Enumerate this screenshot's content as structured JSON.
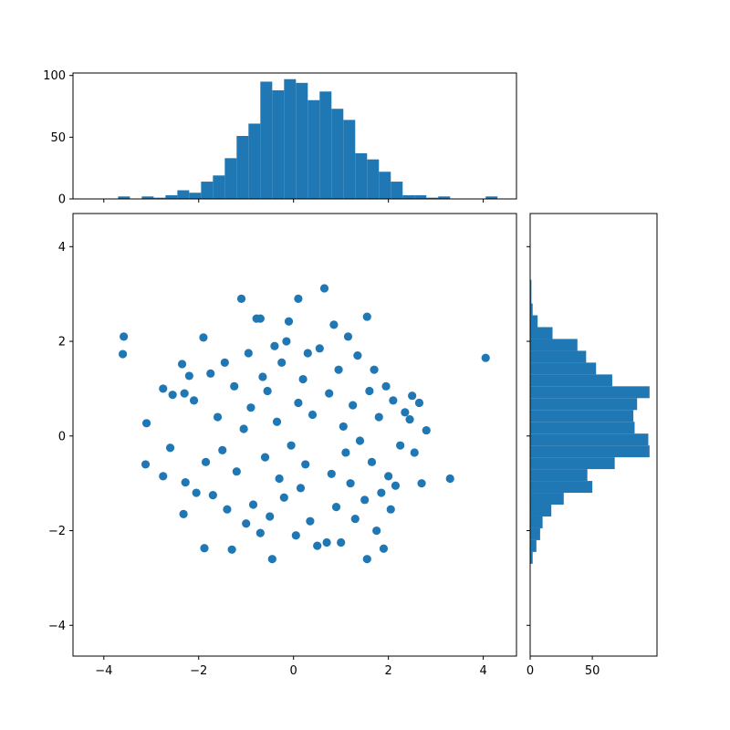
{
  "chart_data": {
    "type": "scatter",
    "color": "#1f77b4",
    "title": "",
    "scatter": {
      "xlabel": "",
      "ylabel": "",
      "xlim": [
        -4.65,
        4.7
      ],
      "ylim": [
        -4.65,
        4.7
      ],
      "xticks": [
        "−4",
        "−2",
        "0",
        "2",
        "4"
      ],
      "yticks": [
        "−4",
        "−2",
        "0",
        "2",
        "4"
      ],
      "xtick_values": [
        -4,
        -2,
        0,
        2,
        4
      ],
      "ytick_values": [
        -4,
        -2,
        0,
        2,
        4
      ],
      "points": [
        [
          -3.58,
          2.1
        ],
        [
          -3.6,
          1.73
        ],
        [
          -3.1,
          0.27
        ],
        [
          -3.12,
          -0.6
        ],
        [
          -2.75,
          1.0
        ],
        [
          -2.75,
          -0.85
        ],
        [
          -2.55,
          0.87
        ],
        [
          -2.6,
          -0.25
        ],
        [
          -2.35,
          1.52
        ],
        [
          -2.3,
          0.9
        ],
        [
          -2.28,
          -0.98
        ],
        [
          -2.32,
          -1.65
        ],
        [
          -2.2,
          1.27
        ],
        [
          -2.1,
          0.75
        ],
        [
          -2.05,
          -1.2
        ],
        [
          -1.9,
          2.08
        ],
        [
          -1.88,
          -2.37
        ],
        [
          -1.85,
          -0.55
        ],
        [
          -1.75,
          1.32
        ],
        [
          -1.7,
          -1.25
        ],
        [
          -1.6,
          0.4
        ],
        [
          -1.5,
          -0.3
        ],
        [
          -1.45,
          1.55
        ],
        [
          -1.4,
          -1.55
        ],
        [
          -1.3,
          -2.4
        ],
        [
          -1.25,
          1.05
        ],
        [
          -1.2,
          -0.75
        ],
        [
          -1.1,
          2.9
        ],
        [
          -1.05,
          0.15
        ],
        [
          -1.0,
          -1.85
        ],
        [
          -0.95,
          1.75
        ],
        [
          -0.9,
          0.6
        ],
        [
          -0.85,
          -1.45
        ],
        [
          -0.78,
          2.48
        ],
        [
          -0.7,
          -2.05
        ],
        [
          -0.7,
          2.48
        ],
        [
          -0.65,
          1.25
        ],
        [
          -0.6,
          -0.45
        ],
        [
          -0.55,
          0.95
        ],
        [
          -0.5,
          -1.7
        ],
        [
          -0.45,
          -2.6
        ],
        [
          -0.4,
          1.9
        ],
        [
          -0.35,
          0.3
        ],
        [
          -0.3,
          -0.9
        ],
        [
          -0.25,
          1.55
        ],
        [
          -0.2,
          -1.3
        ],
        [
          -0.15,
          2.0
        ],
        [
          -0.1,
          2.42
        ],
        [
          -0.05,
          -0.2
        ],
        [
          0.05,
          -2.1
        ],
        [
          0.1,
          2.9
        ],
        [
          0.1,
          0.7
        ],
        [
          0.15,
          -1.1
        ],
        [
          0.2,
          1.2
        ],
        [
          0.25,
          -0.6
        ],
        [
          0.3,
          1.75
        ],
        [
          0.35,
          -1.8
        ],
        [
          0.4,
          0.45
        ],
        [
          0.5,
          -2.32
        ],
        [
          0.55,
          1.85
        ],
        [
          0.65,
          3.12
        ],
        [
          0.7,
          -2.25
        ],
        [
          0.75,
          0.9
        ],
        [
          0.8,
          -0.8
        ],
        [
          0.85,
          2.35
        ],
        [
          0.9,
          -1.5
        ],
        [
          0.95,
          1.4
        ],
        [
          1.0,
          -2.25
        ],
        [
          1.05,
          0.2
        ],
        [
          1.1,
          -0.35
        ],
        [
          1.15,
          2.1
        ],
        [
          1.2,
          -1.0
        ],
        [
          1.25,
          0.65
        ],
        [
          1.3,
          -1.75
        ],
        [
          1.35,
          1.7
        ],
        [
          1.4,
          -0.1
        ],
        [
          1.5,
          -1.35
        ],
        [
          1.55,
          2.52
        ],
        [
          1.55,
          -2.6
        ],
        [
          1.6,
          0.95
        ],
        [
          1.65,
          -0.55
        ],
        [
          1.7,
          1.4
        ],
        [
          1.75,
          -2.0
        ],
        [
          1.8,
          0.4
        ],
        [
          1.85,
          -1.2
        ],
        [
          1.9,
          -2.38
        ],
        [
          1.95,
          1.05
        ],
        [
          2.0,
          -0.85
        ],
        [
          2.05,
          -1.55
        ],
        [
          2.1,
          0.75
        ],
        [
          2.15,
          -1.05
        ],
        [
          2.25,
          -0.2
        ],
        [
          2.35,
          0.5
        ],
        [
          2.45,
          0.35
        ],
        [
          2.5,
          0.85
        ],
        [
          2.55,
          -0.35
        ],
        [
          2.65,
          0.7
        ],
        [
          2.7,
          -1.0
        ],
        [
          2.8,
          0.12
        ],
        [
          3.3,
          -0.9
        ],
        [
          4.05,
          1.65
        ]
      ]
    },
    "hist_x": {
      "ylim": [
        0,
        102
      ],
      "yticks": [
        "0",
        "50",
        "100"
      ],
      "ytick_values": [
        0,
        50,
        100
      ],
      "bin_edges": [
        -3.7,
        -3.45,
        -3.2,
        -2.95,
        -2.7,
        -2.45,
        -2.2,
        -1.95,
        -1.7,
        -1.45,
        -1.2,
        -0.95,
        -0.7,
        -0.45,
        -0.2,
        0.05,
        0.3,
        0.55,
        0.8,
        1.05,
        1.3,
        1.55,
        1.8,
        2.05,
        2.3,
        2.55,
        2.8,
        3.05,
        3.3,
        3.55,
        3.8,
        4.05,
        4.3
      ],
      "counts": [
        2,
        0,
        2,
        1,
        3,
        7,
        5,
        14,
        19,
        33,
        51,
        61,
        95,
        88,
        97,
        94,
        80,
        87,
        73,
        64,
        37,
        32,
        22,
        14,
        3,
        3,
        1,
        2,
        0,
        0,
        0,
        2
      ]
    },
    "hist_y": {
      "xlim": [
        0,
        102
      ],
      "xticks": [
        "0",
        "50"
      ],
      "xtick_values": [
        0,
        50
      ],
      "bin_edges": [
        -2.7,
        -2.45,
        -2.2,
        -1.95,
        -1.7,
        -1.45,
        -1.2,
        -0.95,
        -0.7,
        -0.45,
        -0.2,
        0.05,
        0.3,
        0.55,
        0.8,
        1.05,
        1.3,
        1.55,
        1.8,
        2.05,
        2.3,
        2.55,
        2.8,
        3.05,
        3.3
      ],
      "counts": [
        2,
        5,
        8,
        10,
        17,
        27,
        50,
        46,
        68,
        96,
        95,
        84,
        83,
        86,
        96,
        66,
        53,
        45,
        38,
        18,
        6,
        2,
        1,
        1
      ]
    }
  }
}
